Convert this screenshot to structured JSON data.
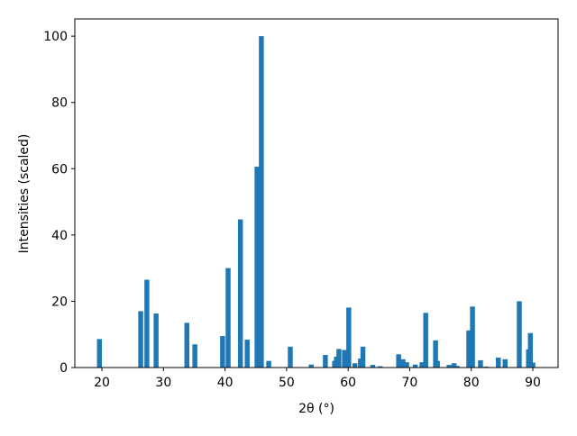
{
  "chart_data": {
    "type": "bar",
    "xlabel": "2θ (°)",
    "ylabel": "Intensities (scaled)",
    "color": "#1f77b4",
    "x": [
      19.6,
      26.3,
      27.3,
      28.8,
      33.8,
      35.1,
      39.6,
      40.5,
      42.5,
      43.6,
      45.2,
      45.9,
      47.1,
      50.6,
      54.0,
      56.3,
      57.8,
      58.1,
      58.5,
      59.4,
      60.1,
      61.1,
      62.0,
      62.4,
      64.0,
      65.2,
      68.2,
      68.9,
      69.5,
      70.9,
      72.0,
      72.6,
      74.2,
      74.5,
      76.4,
      77.2,
      77.7,
      79.6,
      80.2,
      81.5,
      82.4,
      84.4,
      85.5,
      87.8,
      89.3,
      89.6,
      90.0
    ],
    "values": [
      8.6,
      17,
      26.5,
      16.3,
      13.5,
      7,
      9.5,
      30,
      44.7,
      8.4,
      60.6,
      100,
      2,
      6.3,
      0.9,
      3.8,
      2,
      3.3,
      5.6,
      5.3,
      18.1,
      1.3,
      2.7,
      6.3,
      0.8,
      0.4,
      4,
      2.5,
      1.6,
      0.9,
      1.6,
      16.5,
      8.2,
      2,
      0.8,
      1.3,
      0.5,
      11.2,
      18.4,
      2.2,
      0.3,
      3,
      2.5,
      20,
      5.5,
      10.4,
      1.5
    ],
    "xlim": [
      15.6,
      94.1
    ],
    "ylim": [
      0,
      105.2
    ],
    "xticks": [
      20,
      30,
      40,
      50,
      60,
      70,
      80,
      90
    ],
    "yticks": [
      0,
      20,
      40,
      60,
      80,
      100
    ]
  }
}
